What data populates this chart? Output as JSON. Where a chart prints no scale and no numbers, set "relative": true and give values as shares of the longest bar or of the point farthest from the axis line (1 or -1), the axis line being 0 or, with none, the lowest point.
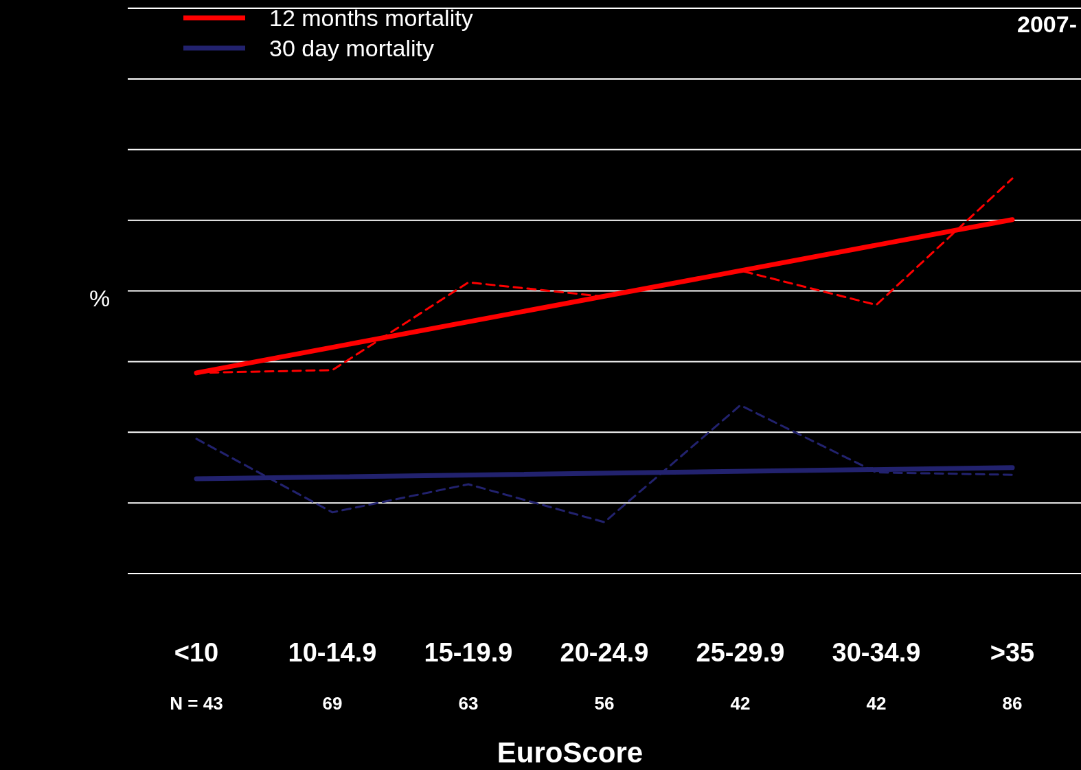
{
  "chart_data": {
    "type": "line",
    "title": "2007-",
    "xlabel": "EuroScore",
    "ylabel": "%",
    "relative": true,
    "categories": [
      "<10",
      "10-14.9",
      "15-19.9",
      "20-24.9",
      "25-29.9",
      "30-34.9",
      ">35"
    ],
    "annotations": [
      "N = 43",
      "69",
      "63",
      "56",
      "42",
      "42",
      "86"
    ],
    "series": [
      {
        "color": "#ff0000",
        "line_style": "dashed",
        "values": [
          0.508,
          0.515,
          0.737,
          0.701,
          0.767,
          0.68,
          1
        ]
      },
      {
        "color": "#22226e",
        "line_style": "dashed",
        "values": [
          0.341,
          0.155,
          0.226,
          0.13,
          0.426,
          0.256,
          0.25
        ]
      },
      {
        "name": "12 months mortality",
        "color": "#ff0000",
        "line_style": "solid",
        "values": [
          0.508,
          null,
          null,
          null,
          null,
          null,
          0.896
        ]
      },
      {
        "name": "30 day mortality",
        "color": "#22226e",
        "line_style": "solid",
        "values": [
          0.24,
          null,
          null,
          null,
          null,
          null,
          0.268
        ]
      }
    ],
    "grid": "y",
    "legend": "top left",
    "marker": "none"
  }
}
